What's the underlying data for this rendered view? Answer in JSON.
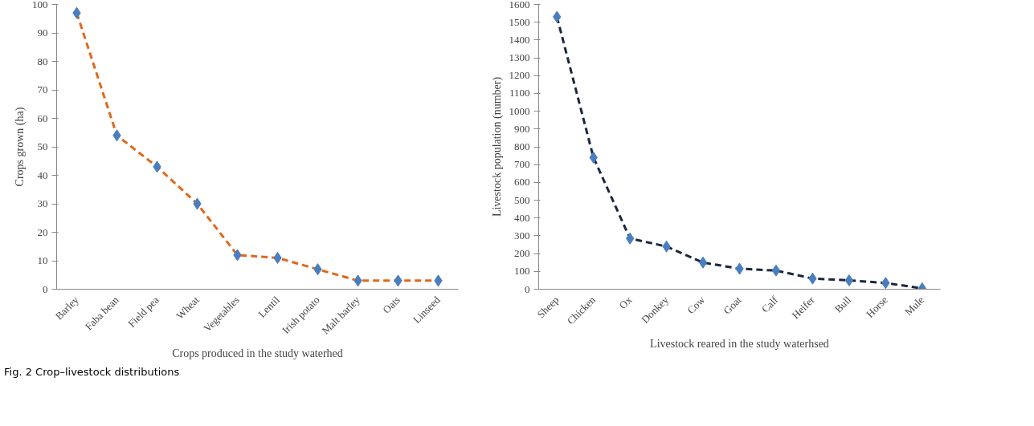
{
  "chart_data": [
    {
      "type": "line",
      "xlabel": "Crops produced in the study waterhed",
      "ylabel": "Crops grown (ha)",
      "categories": [
        "Barley",
        "Faba bean",
        "Field pea",
        "Wheat",
        "Vegetables",
        "Lentil",
        "Irish potato",
        "Malt barley",
        "Oats",
        "Linseed"
      ],
      "series": [
        {
          "color": "#e0681a",
          "colors": [
            "#4a7ebf",
            "#4a7ebf",
            "#4a7ebf",
            "#4a7ebf",
            "#4a7ebf",
            "#4a7ebf",
            "#4a7ebf",
            "#4a7ebf",
            "#4a7ebf",
            "#4a7ebf"
          ],
          "values": [
            97,
            54,
            43,
            30,
            12,
            11,
            7,
            3,
            3,
            3
          ]
        }
      ],
      "ylim": [
        0,
        100
      ],
      "yticks": [
        0,
        10,
        20,
        30,
        40,
        50,
        60,
        70,
        80,
        90,
        100
      ],
      "grid": false,
      "marker": "diamond",
      "line_style": "dashed",
      "annotations": [
        "Fig. 2 Crop–livestock distributions"
      ]
    },
    {
      "type": "line",
      "xlabel": "Livestock reared in the study waterhsed",
      "ylabel": "Livestock population (number)",
      "categories": [
        "Sheep",
        "Chicken",
        "Ox",
        "Donkey",
        "Cow",
        "Goat",
        "Calf",
        "Heifer",
        "Bull",
        "Horse",
        "Mule"
      ],
      "series": [
        {
          "color": "#1a2740",
          "colors": [
            "#4a7ebf",
            "#4a7ebf",
            "#4a7ebf",
            "#4a7ebf",
            "#4a7ebf",
            "#4a7ebf",
            "#4a7ebf",
            "#4a7ebf",
            "#4a7ebf",
            "#4a7ebf",
            "#4a7ebf"
          ],
          "values": [
            1530,
            740,
            285,
            240,
            150,
            115,
            105,
            60,
            50,
            35,
            5
          ]
        }
      ],
      "ylim": [
        0,
        1600
      ],
      "yticks": [
        0,
        100,
        200,
        300,
        400,
        500,
        600,
        700,
        800,
        900,
        1000,
        1100,
        1200,
        1300,
        1400,
        1500,
        1600
      ],
      "grid": false,
      "marker": "diamond",
      "line_style": "dashed"
    }
  ]
}
